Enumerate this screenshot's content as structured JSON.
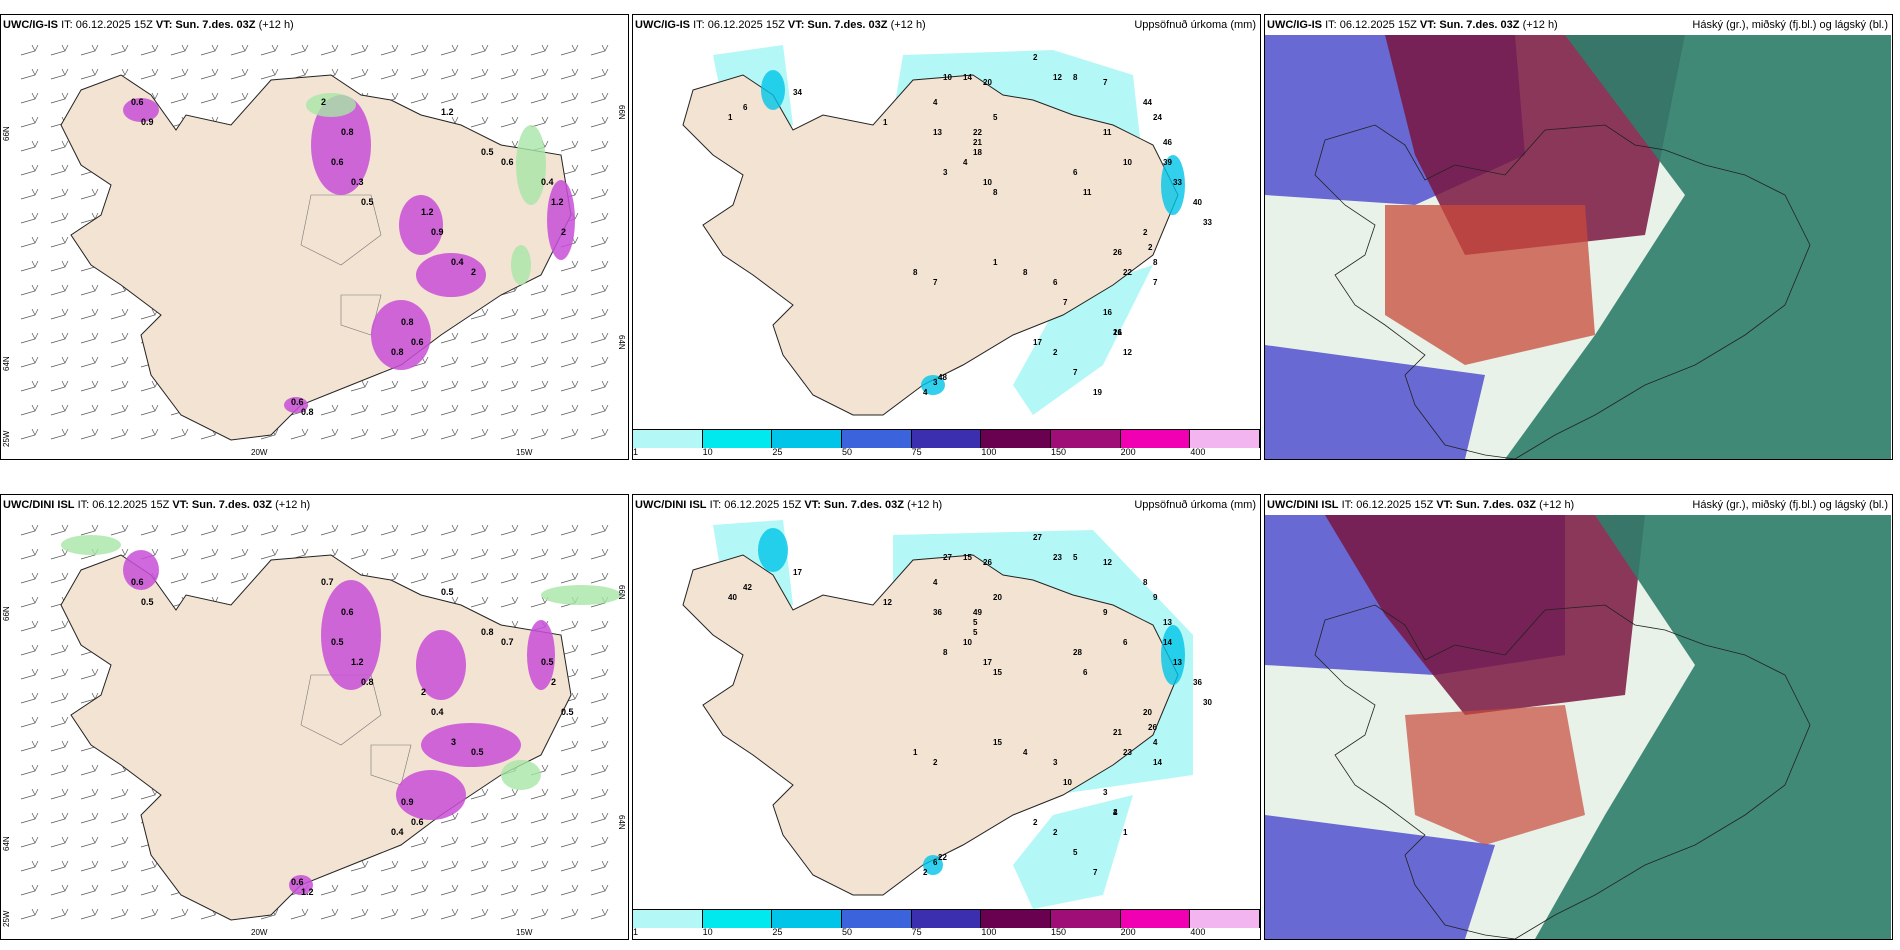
{
  "top_row": {
    "wind": {
      "label": "UWC/IG-IS",
      "it": "IT: 06.12.2025 15Z",
      "vt": "VT: Sun. 7.des. 03Z",
      "lead": "(+12 h)",
      "axis": {
        "lat1": "66N",
        "lat2": "64N",
        "lon1": "20W",
        "lon2": "15W",
        "corner": "25W",
        "right1": "66N",
        "right2": "64N"
      }
    },
    "precip": {
      "label": "UWC/IG-IS",
      "it": "IT: 06.12.2025 15Z",
      "vt": "VT: Sun. 7.des. 03Z",
      "lead": "(+12 h)",
      "title": "Uppsöfnuð úrkoma (mm)",
      "values": [
        "2",
        "10",
        "14",
        "20",
        "5",
        "12",
        "8",
        "7",
        "34",
        "4",
        "1",
        "1",
        "6",
        "13",
        "22",
        "21",
        "18",
        "4",
        "3",
        "10",
        "8",
        "11",
        "10",
        "44",
        "24",
        "46",
        "39",
        "33",
        "40",
        "33",
        "6",
        "11",
        "1",
        "8",
        "6",
        "7",
        "26",
        "22",
        "2",
        "2",
        "8",
        "7",
        "16",
        "16",
        "12",
        "8",
        "7",
        "17",
        "2",
        "7",
        "19",
        "21",
        "3",
        "4",
        "48"
      ]
    },
    "cloud": {
      "label": "UWC/IG-IS",
      "it": "IT: 06.12.2025 15Z",
      "vt": "VT: Sun. 7.des. 03Z",
      "lead": "(+12 h)",
      "title": "Háský (gr.), miðský (fj.bl.) og lágský (bl.)"
    }
  },
  "bottom_row": {
    "wind": {
      "label": "UWC/DINI ISL",
      "it": "IT: 06.12.2025 15Z",
      "vt": "VT: Sun. 7.des. 03Z",
      "lead": "(+12 h)",
      "axis": {
        "lat1": "66N",
        "lat2": "64N",
        "lon1": "20W",
        "lon2": "15W",
        "corner": "25W",
        "right1": "66N",
        "right2": "64N"
      }
    },
    "precip": {
      "label": "UWC/DINI ISL",
      "it": "IT: 06.12.2025 15Z",
      "vt": "VT: Sun. 7.des. 03Z",
      "lead": "(+12 h)",
      "title": "Uppsöfnuð úrkoma (mm)",
      "values": [
        "27",
        "27",
        "15",
        "26",
        "20",
        "23",
        "5",
        "12",
        "17",
        "4",
        "12",
        "40",
        "42",
        "36",
        "49",
        "5",
        "5",
        "10",
        "8",
        "17",
        "15",
        "9",
        "6",
        "8",
        "9",
        "13",
        "14",
        "13",
        "36",
        "30",
        "28",
        "6",
        "15",
        "4",
        "3",
        "10",
        "21",
        "23",
        "20",
        "26",
        "4",
        "14",
        "3",
        "2",
        "1",
        "1",
        "2",
        "2",
        "2",
        "5",
        "7",
        "4",
        "6",
        "2",
        "22"
      ]
    },
    "cloud": {
      "label": "UWC/DINI ISL",
      "it": "IT: 06.12.2025 15Z",
      "vt": "VT: Sun. 7.des. 03Z",
      "lead": "(+12 h)",
      "title": "Háský (gr.), miðský (fj.bl.) og lágský (bl.)"
    }
  },
  "legend": {
    "ticks": [
      "1",
      "10",
      "25",
      "50",
      "75",
      "100",
      "150",
      "200",
      "400"
    ],
    "colors": [
      "#b4f7f7",
      "#00e9ee",
      "#00c4e8",
      "#3a63dc",
      "#3b2fb0",
      "#6a0050",
      "#9e0e76",
      "#f000b2",
      "#f3b5f0"
    ]
  },
  "wind_labels_top": [
    "0.6",
    "0.9",
    "2",
    "0.8",
    "0.6",
    "0.3",
    "0.5",
    "1.2",
    "0.9",
    "0.4",
    "2",
    "0.8",
    "0.6",
    "0.8",
    "0.4",
    "1.2",
    "2",
    "0.5",
    "0.6",
    "0.6",
    "0.8",
    "1.2"
  ],
  "wind_labels_bottom": [
    "0.6",
    "0.5",
    "0.7",
    "0.6",
    "0.5",
    "1.2",
    "0.8",
    "2",
    "0.4",
    "3",
    "0.5",
    "0.9",
    "0.6",
    "0.4",
    "0.5",
    "2",
    "0.5",
    "0.8",
    "0.7",
    "0.6",
    "1.2",
    "0.5"
  ],
  "colors": {
    "land": "#f2e3d3",
    "sea": "#ffffff",
    "pink": "#c84fd7",
    "green": "#a8e6a8",
    "cyan": "#b4f7f7",
    "cloud_high": "#2f7d6a",
    "cloud_mid": "#7a1640",
    "cloud_low": "#5a5ad0"
  }
}
